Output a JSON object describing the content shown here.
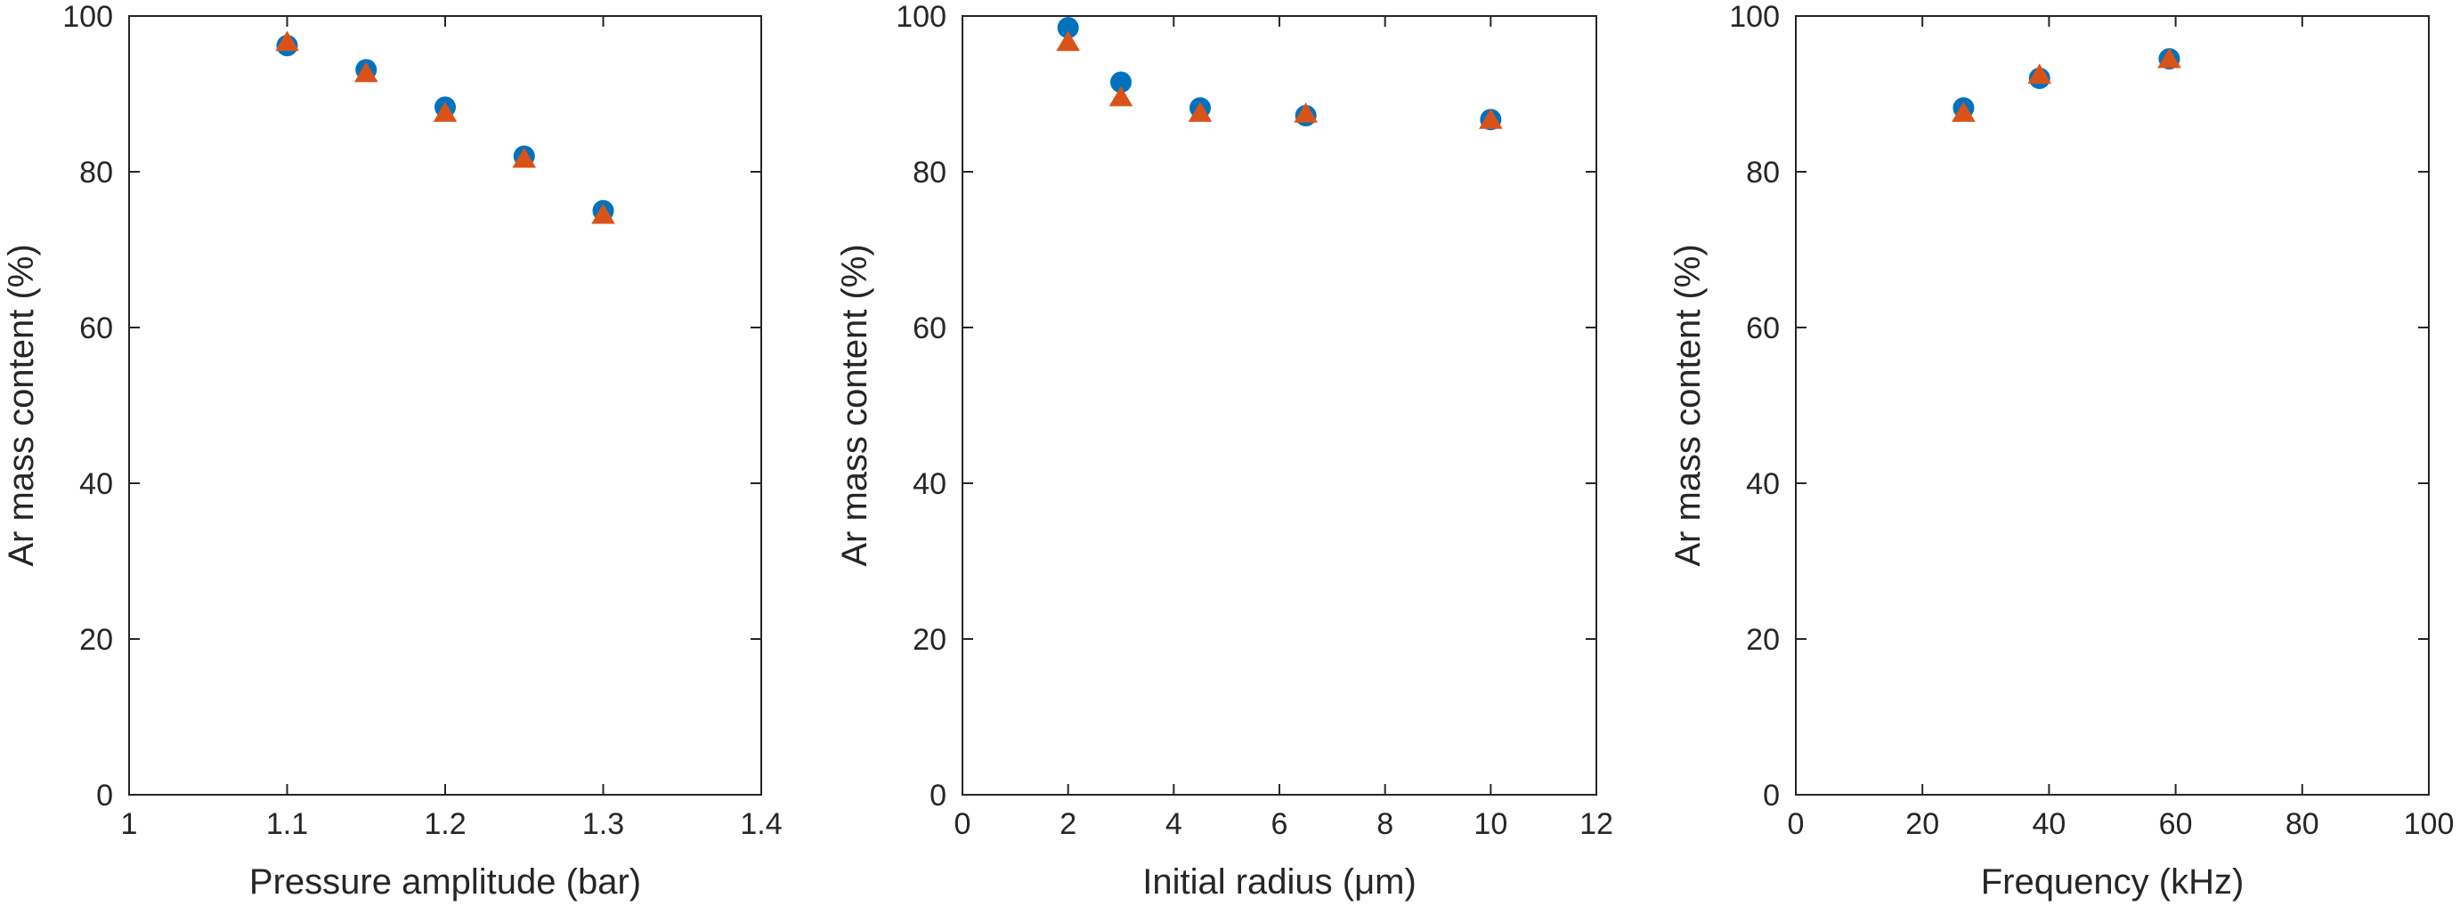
{
  "colors": {
    "series_a": "#0072BD",
    "series_b": "#D95319",
    "axes": "#262626"
  },
  "chart_data": [
    {
      "type": "scatter",
      "xlabel": "Pressure amplitude (bar)",
      "ylabel": "Ar mass content (%)",
      "xlim": [
        1,
        1.4
      ],
      "ylim": [
        0,
        100
      ],
      "xticks": [
        "1",
        "1.1",
        "1.2",
        "1.3",
        "1.4"
      ],
      "yticks": [
        "0",
        "20",
        "40",
        "60",
        "80",
        "100"
      ],
      "grid": false,
      "series": [
        {
          "marker": "circle",
          "color": "#0072BD",
          "x": [
            1.1,
            1.15,
            1.2,
            1.25,
            1.3
          ],
          "y": [
            96.2,
            93.1,
            88.3,
            82.0,
            75.0
          ]
        },
        {
          "marker": "triangle",
          "color": "#D95319",
          "x": [
            1.1,
            1.15,
            1.2,
            1.25,
            1.3
          ],
          "y": [
            96.5,
            92.5,
            87.4,
            81.5,
            74.3
          ]
        }
      ]
    },
    {
      "type": "scatter",
      "xlabel": "Initial radius (μm)",
      "ylabel": "Ar mass content (%)",
      "xlim": [
        0,
        12
      ],
      "ylim": [
        0,
        100
      ],
      "xticks": [
        "0",
        "2",
        "4",
        "6",
        "8",
        "10",
        "12"
      ],
      "yticks": [
        "0",
        "20",
        "40",
        "60",
        "80",
        "100"
      ],
      "grid": false,
      "series": [
        {
          "marker": "circle",
          "color": "#0072BD",
          "x": [
            2,
            3,
            4.5,
            6.5,
            10
          ],
          "y": [
            98.5,
            91.5,
            88.2,
            87.2,
            86.7
          ]
        },
        {
          "marker": "triangle",
          "color": "#D95319",
          "x": [
            2,
            3,
            4.5,
            6.5,
            10
          ],
          "y": [
            96.5,
            89.4,
            87.4,
            87.3,
            86.5
          ]
        }
      ]
    },
    {
      "type": "scatter",
      "xlabel": "Frequency (kHz)",
      "ylabel": "Ar mass content (%)",
      "xlim": [
        0,
        100
      ],
      "ylim": [
        0,
        100
      ],
      "xticks": [
        "0",
        "20",
        "40",
        "60",
        "80",
        "100"
      ],
      "yticks": [
        "0",
        "20",
        "40",
        "60",
        "80",
        "100"
      ],
      "grid": false,
      "series": [
        {
          "marker": "circle",
          "color": "#0072BD",
          "x": [
            26.5,
            38.5,
            59
          ],
          "y": [
            88.2,
            92.0,
            94.5
          ]
        },
        {
          "marker": "triangle",
          "color": "#D95319",
          "x": [
            26.5,
            38.5,
            59
          ],
          "y": [
            87.4,
            92.3,
            94.3
          ]
        }
      ]
    }
  ]
}
